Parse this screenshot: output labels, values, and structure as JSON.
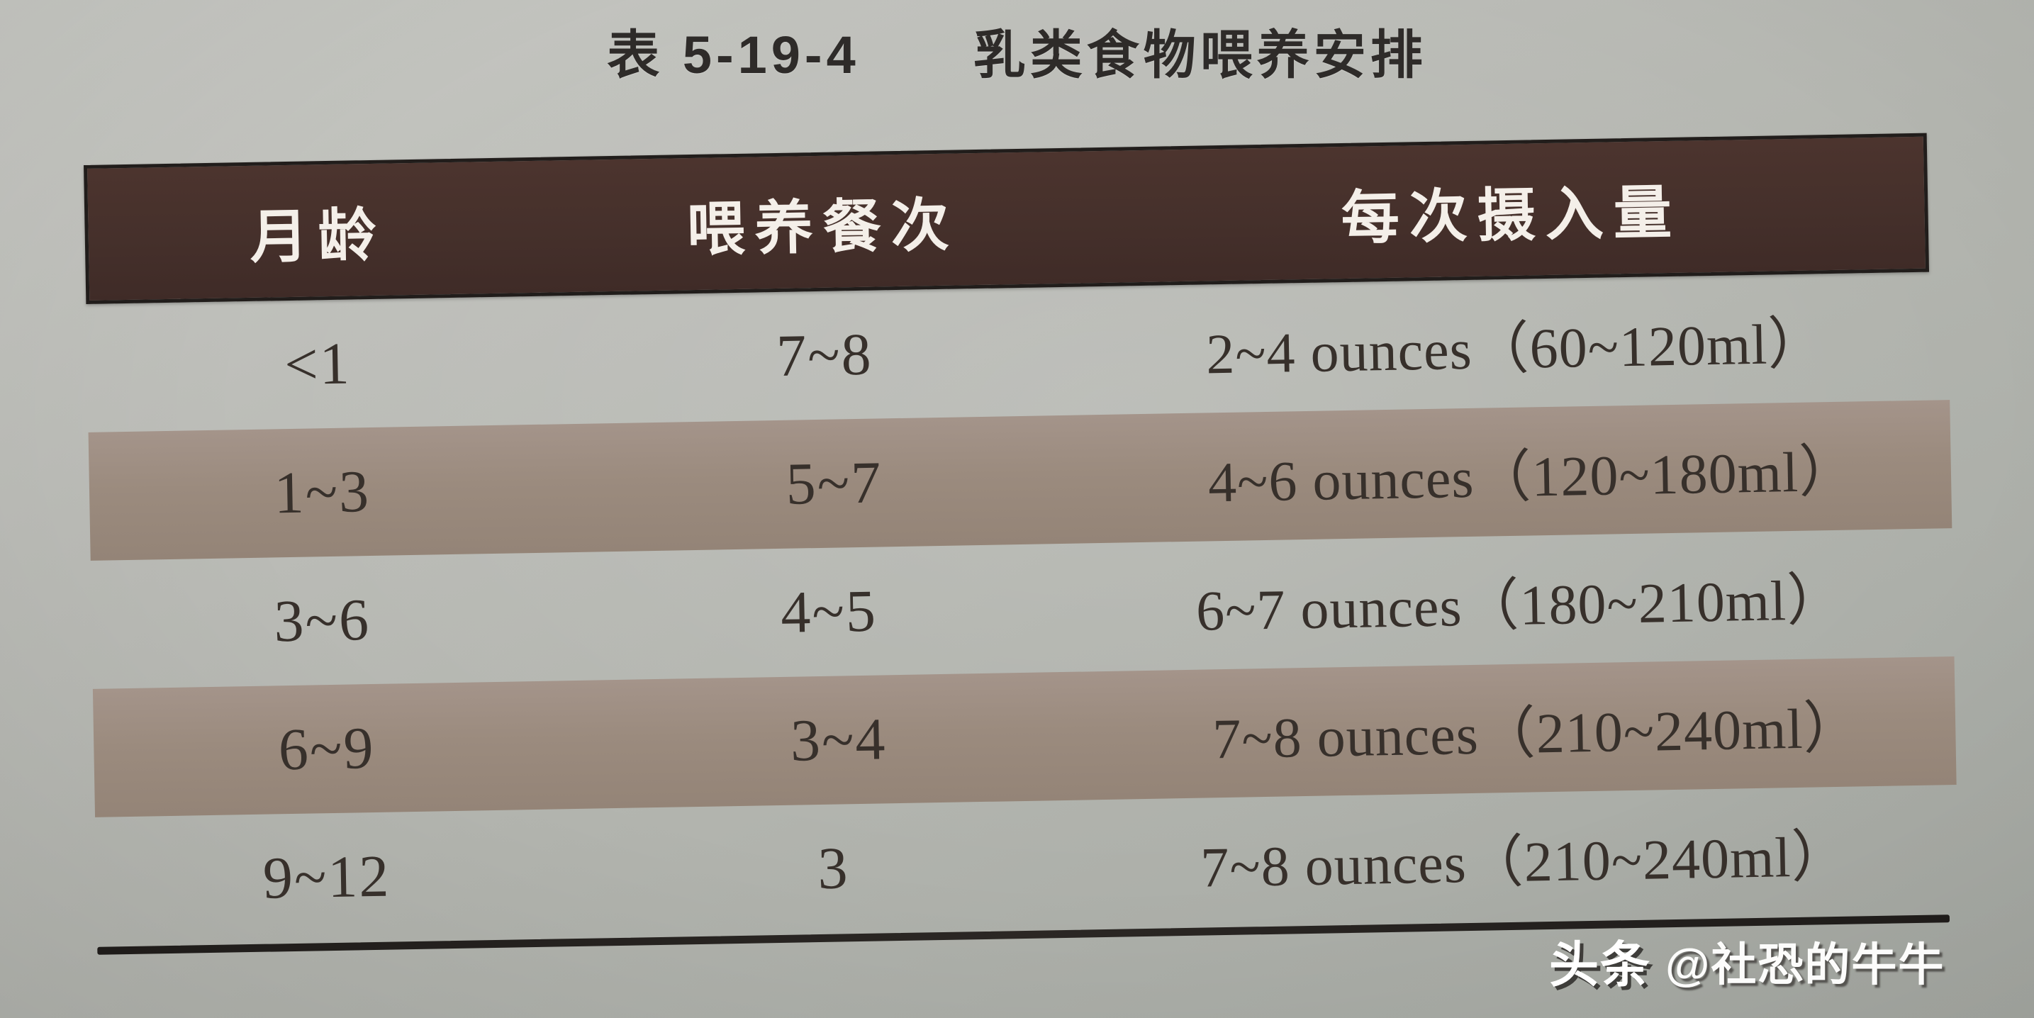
{
  "page": {
    "title": "表 5-19-4　　乳类食物喂养安排"
  },
  "table": {
    "columns": [
      "月龄",
      "喂养餐次",
      "每次摄入量"
    ],
    "rows": [
      {
        "age": "<1",
        "meals": "7~8",
        "intake": "2~4 ounces（60~120ml）",
        "shaded": false
      },
      {
        "age": "1~3",
        "meals": "5~7",
        "intake": "4~6 ounces（120~180ml）",
        "shaded": true
      },
      {
        "age": "3~6",
        "meals": "4~5",
        "intake": "6~7 ounces（180~210ml）",
        "shaded": false
      },
      {
        "age": "6~9",
        "meals": "3~4",
        "intake": "7~8 ounces（210~240ml）",
        "shaded": true
      },
      {
        "age": "9~12",
        "meals": "3",
        "intake": "7~8 ounces（210~240ml）",
        "shaded": false
      }
    ]
  },
  "watermark": {
    "brand": "头条",
    "handle": "@社恐的牛牛"
  },
  "colors": {
    "header_background": "#45302b",
    "header_text": "#f4efe9",
    "shaded_row_background": "#9b8b7e",
    "page_background": "#b3b5af",
    "body_text": "#37302b",
    "bottom_rule": "#2b2724"
  }
}
